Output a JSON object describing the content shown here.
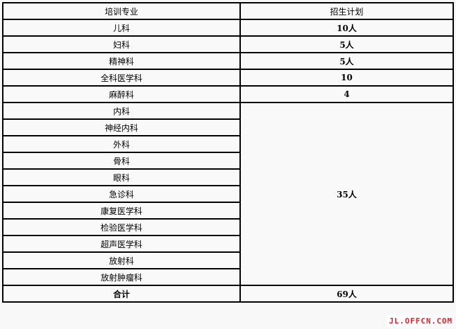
{
  "table": {
    "headers": [
      "培训专业",
      "招生计划"
    ],
    "rows": [
      {
        "major": "儿科",
        "plan": "10人"
      },
      {
        "major": "妇科",
        "plan": "5人"
      },
      {
        "major": "精神科",
        "plan": "5人"
      },
      {
        "major": "全科医学科",
        "plan": "10"
      },
      {
        "major": "麻醉科",
        "plan": "4"
      }
    ],
    "group_majors": [
      "内科",
      "神经内科",
      "外科",
      "骨科",
      "眼科",
      "急诊科",
      "康复医学科",
      "检验医学科",
      "超声医学科",
      "放射科",
      "放射肿瘤科"
    ],
    "group_plan": "35人",
    "total_label": "合计",
    "total_value": "69人"
  },
  "watermark": "JL.OFFCN.COM"
}
